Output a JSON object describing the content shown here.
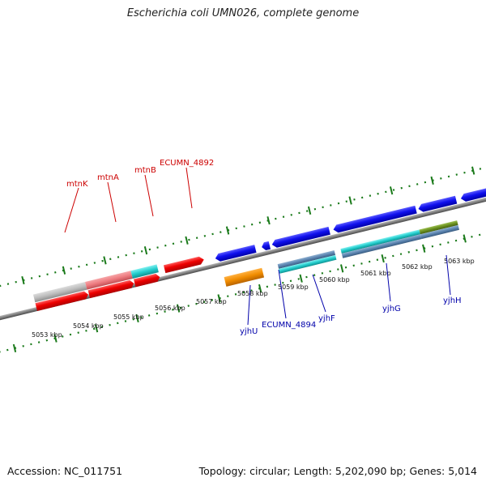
{
  "title": "Escherichia coli UMN026, complete genome",
  "footer": {
    "accession": "Accession: NC_011751",
    "summary": "Topology: circular; Length: 5,202,090 bp; Genes: 5,014"
  },
  "colors": {
    "forward_label": "#cc0000",
    "reverse_label": "#0000aa",
    "backbone": "#808080",
    "tick": "#1a7a1a"
  },
  "scale_labels": [
    "5053 kbp",
    "5054 kbp",
    "5055 kbp",
    "5056 kbp",
    "5057 kbp",
    "5058 kbp",
    "5059 kbp",
    "5060 kbp",
    "5061 kbp",
    "5062 kbp",
    "5063 kbp"
  ],
  "forward_gene_labels": [
    "mtnK",
    "mtnA",
    "mtnB",
    "ECUMN_4892"
  ],
  "reverse_gene_labels": [
    "yjhU",
    "ECUMN_4894",
    "yjhF",
    "yjhG",
    "yjhH"
  ],
  "feature_colors": {
    "gene_red": "#ee0000",
    "gene_blue": "#1010ee",
    "gene_orange": "#f08c00",
    "cds_gray": "#bdbdbd",
    "cds_pink": "#ee7b80",
    "cds_cyan": "#22cccc",
    "cds_steel": "#5b84b0",
    "cds_olive": "#6a8f20"
  }
}
